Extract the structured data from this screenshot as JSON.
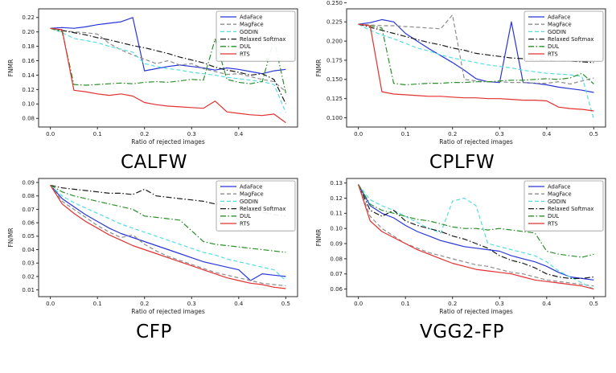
{
  "page": {
    "background": "#ffffff"
  },
  "chart_data": [
    {
      "type": "line",
      "title": "CALFW",
      "xlabel": "Ratio of rejected images",
      "ylabel": "FNMR",
      "grid": false,
      "legend_position": "top-right",
      "xlim": [
        -0.025,
        0.525
      ],
      "ylim": [
        0.068,
        0.232
      ],
      "xtick_labels": [
        "0.0",
        "0.1",
        "0.2",
        "0.3",
        "0.4"
      ],
      "ytick_labels": [
        "0.08",
        "0.10",
        "0.12",
        "0.14",
        "0.16",
        "0.18",
        "0.20",
        "0.22"
      ],
      "x": [
        0,
        0.025,
        0.05,
        0.075,
        0.1,
        0.125,
        0.15,
        0.175,
        0.2,
        0.225,
        0.25,
        0.275,
        0.3,
        0.325,
        0.35,
        0.375,
        0.4,
        0.425,
        0.45,
        0.475,
        0.5
      ],
      "series": [
        {
          "name": "AdaFace",
          "color": "#2736d9",
          "dash": "solid",
          "y": [
            0.205,
            0.206,
            0.205,
            0.207,
            0.21,
            0.212,
            0.214,
            0.22,
            0.146,
            0.149,
            0.152,
            0.154,
            0.152,
            0.15,
            0.147,
            0.15,
            0.148,
            0.145,
            0.142,
            0.146,
            0.148
          ]
        },
        {
          "name": "MagFace",
          "color": "#8c8c8c",
          "dash": "dashed",
          "y": [
            0.205,
            0.202,
            0.2,
            0.199,
            0.197,
            0.184,
            0.175,
            0.168,
            0.162,
            0.156,
            0.16,
            0.154,
            0.156,
            0.149,
            0.145,
            0.141,
            0.142,
            0.138,
            0.134,
            0.131,
            0.117
          ]
        },
        {
          "name": "GODIN",
          "color": "#55dede",
          "dash": "dashed",
          "y": [
            0.205,
            0.199,
            0.191,
            0.188,
            0.185,
            0.18,
            0.176,
            0.172,
            0.156,
            0.152,
            0.149,
            0.147,
            0.144,
            0.142,
            0.14,
            0.137,
            0.135,
            0.133,
            0.131,
            0.127,
            0.088
          ]
        },
        {
          "name": "Relaxed Softmax",
          "color": "#1a1a1a",
          "dash": "dashdot",
          "y": [
            0.205,
            0.202,
            0.199,
            0.196,
            0.192,
            0.189,
            0.185,
            0.181,
            0.178,
            0.174,
            0.17,
            0.165,
            0.161,
            0.157,
            0.151,
            0.147,
            0.144,
            0.14,
            0.142,
            0.134,
            0.1
          ]
        },
        {
          "name": "DUL",
          "color": "#2a8f2a",
          "dash": "dashdot",
          "y": [
            0.205,
            0.2,
            0.127,
            0.126,
            0.127,
            0.128,
            0.129,
            0.128,
            0.13,
            0.131,
            0.13,
            0.132,
            0.134,
            0.133,
            0.19,
            0.134,
            0.13,
            0.128,
            0.131,
            0.19,
            0.115
          ]
        },
        {
          "name": "RTS",
          "color": "#e33030",
          "dash": "solid",
          "y": [
            0.205,
            0.203,
            0.119,
            0.117,
            0.114,
            0.112,
            0.114,
            0.111,
            0.102,
            0.099,
            0.097,
            0.096,
            0.095,
            0.094,
            0.104,
            0.089,
            0.087,
            0.085,
            0.084,
            0.086,
            0.074
          ]
        }
      ]
    },
    {
      "type": "line",
      "title": "CPLFW",
      "xlabel": "Ratio of rejected images",
      "ylabel": "FNMR",
      "grid": false,
      "legend_position": "top-right",
      "xlim": [
        -0.025,
        0.525
      ],
      "ylim": [
        0.088,
        0.242
      ],
      "xtick_labels": [
        "0.0",
        "0.1",
        "0.2",
        "0.3",
        "0.4",
        "0.5"
      ],
      "ytick_labels": [
        "0.100",
        "0.125",
        "0.150",
        "0.175",
        "0.200",
        "0.225",
        "0.250"
      ],
      "x": [
        0,
        0.025,
        0.05,
        0.075,
        0.1,
        0.125,
        0.15,
        0.175,
        0.2,
        0.225,
        0.25,
        0.275,
        0.3,
        0.325,
        0.35,
        0.375,
        0.4,
        0.425,
        0.45,
        0.475,
        0.5
      ],
      "series": [
        {
          "name": "AdaFace",
          "color": "#2736d9",
          "dash": "solid",
          "y": [
            0.222,
            0.224,
            0.228,
            0.225,
            0.21,
            0.2,
            0.19,
            0.181,
            0.172,
            0.162,
            0.151,
            0.147,
            0.146,
            0.225,
            0.146,
            0.145,
            0.143,
            0.14,
            0.138,
            0.136,
            0.133
          ]
        },
        {
          "name": "MagFace",
          "color": "#8c8c8c",
          "dash": "dashed",
          "y": [
            0.222,
            0.221,
            0.22,
            0.22,
            0.219,
            0.218,
            0.217,
            0.216,
            0.234,
            0.15,
            0.148,
            0.147,
            0.147,
            0.146,
            0.146,
            0.145,
            0.145,
            0.147,
            0.144,
            0.148,
            0.152
          ]
        },
        {
          "name": "GODIN",
          "color": "#55dede",
          "dash": "dashed",
          "y": [
            0.222,
            0.214,
            0.208,
            0.203,
            0.197,
            0.191,
            0.187,
            0.182,
            0.178,
            0.175,
            0.172,
            0.169,
            0.167,
            0.165,
            0.162,
            0.16,
            0.158,
            0.157,
            0.156,
            0.154,
            0.098
          ]
        },
        {
          "name": "Relaxed Softmax",
          "color": "#1a1a1a",
          "dash": "dashdot",
          "y": [
            0.222,
            0.218,
            0.214,
            0.21,
            0.206,
            0.202,
            0.198,
            0.195,
            0.191,
            0.188,
            0.184,
            0.182,
            0.18,
            0.178,
            0.177,
            0.176,
            0.175,
            0.174,
            0.174,
            0.173,
            0.172
          ]
        },
        {
          "name": "DUL",
          "color": "#2a8f2a",
          "dash": "dashdot",
          "y": [
            0.222,
            0.22,
            0.217,
            0.145,
            0.143,
            0.144,
            0.145,
            0.145,
            0.146,
            0.146,
            0.147,
            0.147,
            0.148,
            0.149,
            0.149,
            0.15,
            0.151,
            0.15,
            0.152,
            0.158,
            0.144
          ]
        },
        {
          "name": "RTS",
          "color": "#e33030",
          "dash": "solid",
          "y": [
            0.222,
            0.22,
            0.134,
            0.131,
            0.13,
            0.129,
            0.128,
            0.128,
            0.127,
            0.126,
            0.126,
            0.125,
            0.125,
            0.124,
            0.123,
            0.123,
            0.122,
            0.114,
            0.112,
            0.111,
            0.109
          ]
        }
      ]
    },
    {
      "type": "line",
      "title": "CFP",
      "xlabel": "Ratio of rejected images",
      "ylabel": "FN/MR",
      "grid": false,
      "legend_position": "top-right",
      "xlim": [
        -0.025,
        0.525
      ],
      "ylim": [
        0.005,
        0.093
      ],
      "xtick_labels": [
        "0.0",
        "0.1",
        "0.2",
        "0.3",
        "0.4",
        "0.5"
      ],
      "ytick_labels": [
        "0.01",
        "0.02",
        "0.03",
        "0.04",
        "0.05",
        "0.06",
        "0.07",
        "0.08",
        "0.09"
      ],
      "x": [
        0,
        0.025,
        0.05,
        0.075,
        0.1,
        0.125,
        0.15,
        0.175,
        0.2,
        0.225,
        0.25,
        0.275,
        0.3,
        0.325,
        0.35,
        0.375,
        0.4,
        0.425,
        0.45,
        0.475,
        0.5
      ],
      "series": [
        {
          "name": "AdaFace",
          "color": "#2736d9",
          "dash": "solid",
          "y": [
            0.088,
            0.078,
            0.072,
            0.066,
            0.061,
            0.056,
            0.052,
            0.049,
            0.046,
            0.043,
            0.04,
            0.037,
            0.034,
            0.031,
            0.029,
            0.027,
            0.025,
            0.017,
            0.022,
            0.021,
            0.02
          ]
        },
        {
          "name": "MagFace",
          "color": "#8c8c8c",
          "dash": "dashed",
          "y": [
            0.088,
            0.076,
            0.07,
            0.064,
            0.058,
            0.053,
            0.049,
            0.051,
            0.044,
            0.039,
            0.035,
            0.032,
            0.029,
            0.026,
            0.023,
            0.021,
            0.019,
            0.017,
            0.015,
            0.014,
            0.013
          ]
        },
        {
          "name": "GODIN",
          "color": "#55dede",
          "dash": "dashed",
          "y": [
            0.088,
            0.08,
            0.075,
            0.071,
            0.067,
            0.063,
            0.059,
            0.056,
            0.053,
            0.05,
            0.047,
            0.044,
            0.041,
            0.038,
            0.036,
            0.033,
            0.031,
            0.029,
            0.027,
            0.025,
            0.017
          ]
        },
        {
          "name": "Relaxed Softmax",
          "color": "#1a1a1a",
          "dash": "dashdot",
          "y": [
            0.088,
            0.086,
            0.085,
            0.084,
            0.083,
            0.082,
            0.082,
            0.081,
            0.085,
            0.08,
            0.079,
            0.078,
            0.077,
            0.076,
            0.074,
            0.073,
            0.071,
            0.069,
            0.068,
            0.066,
            0.065
          ]
        },
        {
          "name": "DUL",
          "color": "#2a8f2a",
          "dash": "dashdot",
          "y": [
            0.088,
            0.083,
            0.08,
            0.078,
            0.076,
            0.074,
            0.072,
            0.07,
            0.065,
            0.064,
            0.063,
            0.062,
            0.054,
            0.046,
            0.044,
            0.043,
            0.042,
            0.041,
            0.04,
            0.039,
            0.038
          ]
        },
        {
          "name": "RTS",
          "color": "#e33030",
          "dash": "solid",
          "y": [
            0.088,
            0.074,
            0.067,
            0.061,
            0.056,
            0.051,
            0.047,
            0.043,
            0.04,
            0.037,
            0.034,
            0.031,
            0.028,
            0.025,
            0.022,
            0.019,
            0.017,
            0.015,
            0.014,
            0.012,
            0.011
          ]
        }
      ]
    },
    {
      "type": "line",
      "title": "VGG2-FP",
      "xlabel": "Ratio of rejected images",
      "ylabel": "FNMR",
      "grid": false,
      "legend_position": "top-right",
      "xlim": [
        -0.025,
        0.525
      ],
      "ylim": [
        0.055,
        0.133
      ],
      "xtick_labels": [
        "0.0",
        "0.1",
        "0.2",
        "0.3",
        "0.4",
        "0.5"
      ],
      "ytick_labels": [
        "0.06",
        "0.07",
        "0.08",
        "0.09",
        "0.10",
        "0.11",
        "0.12",
        "0.13"
      ],
      "x": [
        0,
        0.025,
        0.05,
        0.075,
        0.1,
        0.125,
        0.15,
        0.175,
        0.2,
        0.225,
        0.25,
        0.275,
        0.3,
        0.325,
        0.35,
        0.375,
        0.4,
        0.425,
        0.45,
        0.475,
        0.5
      ],
      "series": [
        {
          "name": "AdaFace",
          "color": "#2736d9",
          "dash": "solid",
          "y": [
            0.129,
            0.115,
            0.11,
            0.107,
            0.102,
            0.098,
            0.095,
            0.092,
            0.09,
            0.088,
            0.087,
            0.086,
            0.085,
            0.082,
            0.08,
            0.078,
            0.075,
            0.071,
            0.068,
            0.067,
            0.066
          ]
        },
        {
          "name": "MagFace",
          "color": "#8c8c8c",
          "dash": "dashed",
          "y": [
            0.129,
            0.108,
            0.1,
            0.095,
            0.09,
            0.087,
            0.084,
            0.082,
            0.08,
            0.078,
            0.076,
            0.075,
            0.073,
            0.071,
            0.07,
            0.068,
            0.066,
            0.065,
            0.064,
            0.063,
            0.062
          ]
        },
        {
          "name": "GODIN",
          "color": "#55dede",
          "dash": "dashed",
          "y": [
            0.129,
            0.119,
            0.115,
            0.112,
            0.108,
            0.104,
            0.1,
            0.097,
            0.118,
            0.12,
            0.115,
            0.09,
            0.088,
            0.086,
            0.084,
            0.082,
            0.078,
            0.072,
            0.068,
            0.064,
            0.06
          ]
        },
        {
          "name": "Relaxed Softmax",
          "color": "#1a1a1a",
          "dash": "dashdot",
          "y": [
            0.129,
            0.112,
            0.108,
            0.112,
            0.105,
            0.102,
            0.1,
            0.098,
            0.095,
            0.093,
            0.09,
            0.087,
            0.082,
            0.079,
            0.077,
            0.074,
            0.07,
            0.068,
            0.067,
            0.067,
            0.068
          ]
        },
        {
          "name": "DUL",
          "color": "#2a8f2a",
          "dash": "dashdot",
          "y": [
            0.129,
            0.116,
            0.112,
            0.11,
            0.108,
            0.106,
            0.105,
            0.103,
            0.101,
            0.1,
            0.1,
            0.099,
            0.1,
            0.099,
            0.098,
            0.097,
            0.085,
            0.083,
            0.082,
            0.081,
            0.083
          ]
        },
        {
          "name": "RTS",
          "color": "#e33030",
          "dash": "solid",
          "y": [
            0.129,
            0.105,
            0.098,
            0.094,
            0.09,
            0.086,
            0.083,
            0.08,
            0.077,
            0.075,
            0.073,
            0.072,
            0.071,
            0.07,
            0.068,
            0.066,
            0.065,
            0.064,
            0.063,
            0.062,
            0.06
          ]
        }
      ]
    }
  ]
}
